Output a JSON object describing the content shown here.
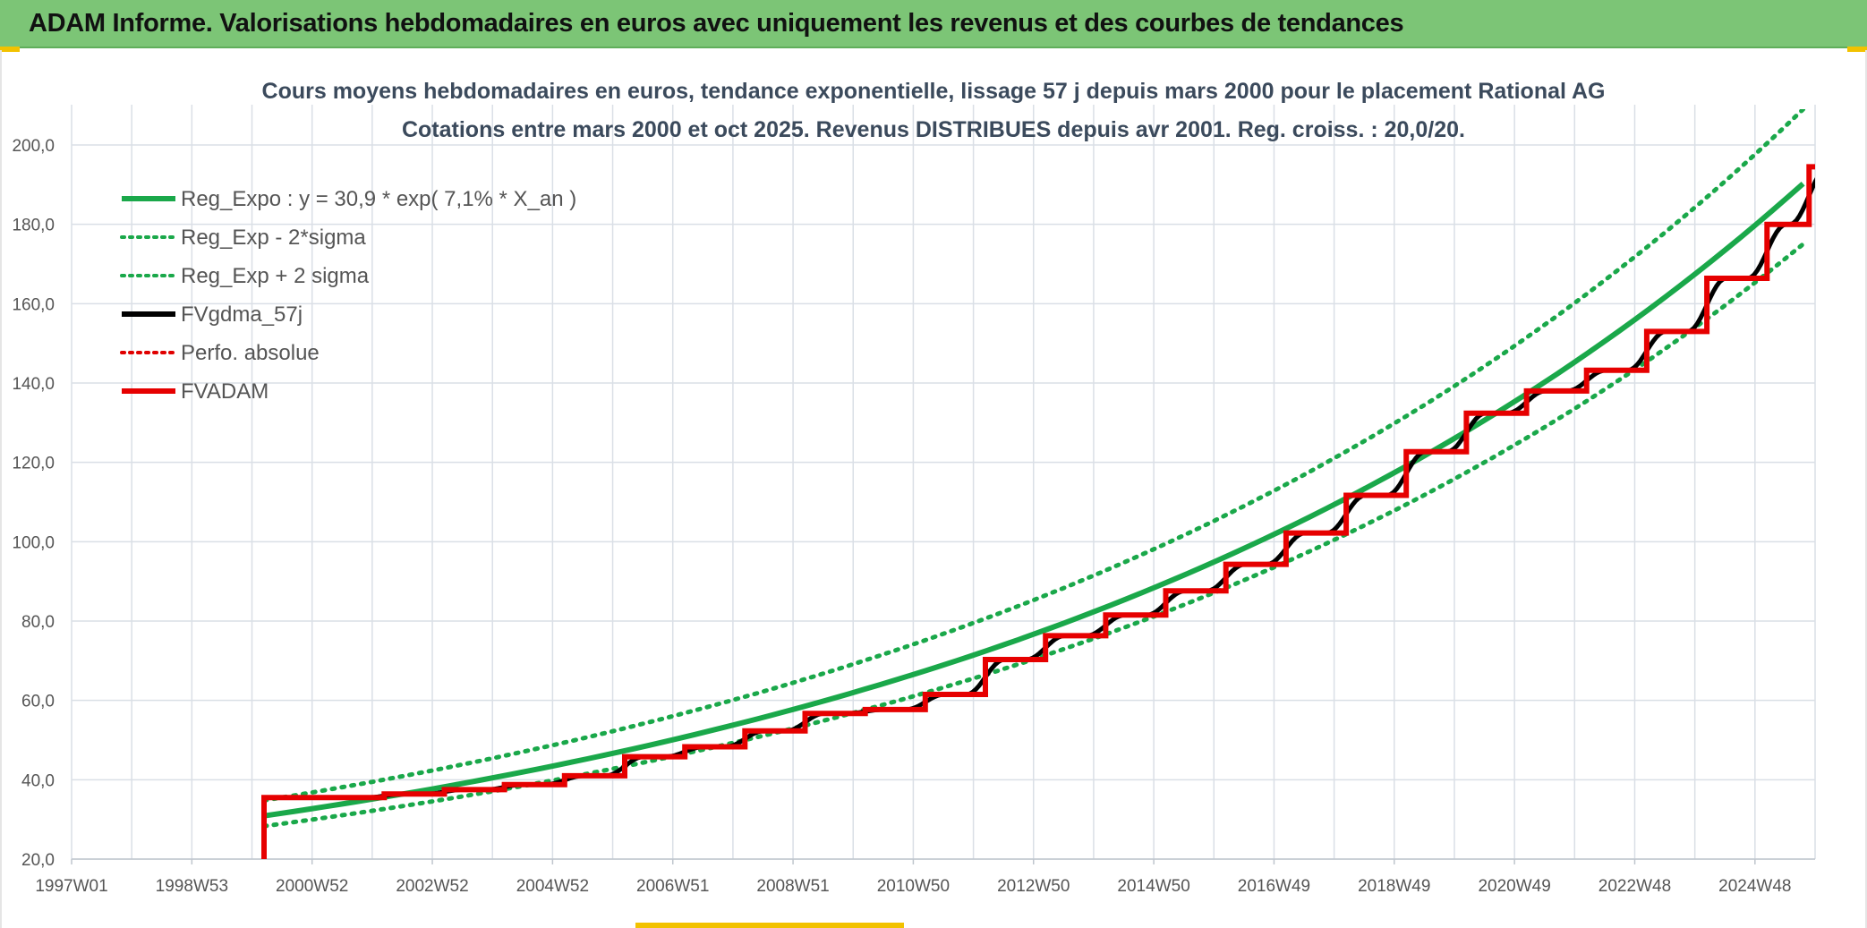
{
  "banner": {
    "title": "ADAM Informe. Valorisations hebdomadaires en euros avec uniquement les revenus et des courbes de tendances"
  },
  "chart_data": {
    "type": "line",
    "title": "Cours moyens hebdomadaires en euros, tendance exponentielle, lissage 57 j depuis mars 2000 pour le placement Rational AG",
    "subtitle": "Cotations entre mars 2000 et oct 2025. Revenus DISTRIBUES depuis avr 2001. Reg. croiss. : 20,0/20.",
    "x_tick_labels": [
      "1997W01",
      "1998W53",
      "2000W52",
      "2002W52",
      "2004W52",
      "2006W51",
      "2008W51",
      "2010W50",
      "2012W50",
      "2014W50",
      "2016W49",
      "2018W49",
      "2020W49",
      "2022W48",
      "2024W48"
    ],
    "x_tick_years": [
      1997.0,
      1999.0,
      2001.0,
      2003.0,
      2005.0,
      2007.0,
      2009.0,
      2011.0,
      2013.0,
      2015.0,
      2017.0,
      2019.0,
      2021.0,
      2023.0,
      2025.0
    ],
    "xlim": [
      1997.0,
      2026.0
    ],
    "ylim": [
      20,
      200
    ],
    "y_ticks": [
      "20,0",
      "40,0",
      "60,0",
      "80,0",
      "100,0",
      "120,0",
      "140,0",
      "160,0",
      "180,0",
      "200,0"
    ],
    "y_tick_values": [
      20,
      40,
      60,
      80,
      100,
      120,
      140,
      160,
      180,
      200
    ],
    "grid": true,
    "legend_position": "top-left",
    "legend": [
      {
        "label": "Reg_Expo : y = 30,9 * exp( 7,1% *  X_an )",
        "color": "#1aa84a",
        "style": "solid"
      },
      {
        "label": "Reg_Exp - 2*sigma",
        "color": "#1aa84a",
        "style": "dotted"
      },
      {
        "label": "Reg_Exp + 2 sigma",
        "color": "#1aa84a",
        "style": "dotted"
      },
      {
        "label": "FVgdma_57j",
        "color": "#000000",
        "style": "solid"
      },
      {
        "label": "Perfo. absolue",
        "color": "#e00000",
        "style": "dotted"
      },
      {
        "label": "FVADAM",
        "color": "#e60000",
        "style": "solid"
      }
    ],
    "regression": {
      "a": 30.9,
      "rate": 0.071,
      "x0": 2000.2,
      "x_end": 2025.8
    },
    "band_lower": {
      "x": [
        2000.2,
        2025.8
      ],
      "y": [
        28.3,
        175.0
      ]
    },
    "band_upper": {
      "x": [
        2000.2,
        2025.8
      ],
      "y": [
        34.8,
        209.0
      ]
    },
    "fvadam_start": {
      "year": 2000.2,
      "value": 20.0
    },
    "fvadam_steps": [
      {
        "year": 2000.2,
        "value": 35.5
      },
      {
        "year": 2002.2,
        "value": 36.4
      },
      {
        "year": 2003.2,
        "value": 37.5
      },
      {
        "year": 2004.2,
        "value": 38.8
      },
      {
        "year": 2005.2,
        "value": 41.0
      },
      {
        "year": 2006.2,
        "value": 45.8
      },
      {
        "year": 2007.2,
        "value": 48.3
      },
      {
        "year": 2008.2,
        "value": 52.3
      },
      {
        "year": 2009.2,
        "value": 56.7
      },
      {
        "year": 2010.2,
        "value": 57.7
      },
      {
        "year": 2011.2,
        "value": 61.5
      },
      {
        "year": 2012.2,
        "value": 70.3
      },
      {
        "year": 2013.2,
        "value": 76.3
      },
      {
        "year": 2014.2,
        "value": 81.5
      },
      {
        "year": 2015.2,
        "value": 87.6
      },
      {
        "year": 2016.2,
        "value": 94.3
      },
      {
        "year": 2017.2,
        "value": 102.2
      },
      {
        "year": 2018.2,
        "value": 111.7
      },
      {
        "year": 2019.2,
        "value": 122.7
      },
      {
        "year": 2020.2,
        "value": 132.4
      },
      {
        "year": 2021.2,
        "value": 138.0
      },
      {
        "year": 2022.2,
        "value": 143.2
      },
      {
        "year": 2023.2,
        "value": 153.0
      },
      {
        "year": 2024.2,
        "value": 166.4
      },
      {
        "year": 2025.2,
        "value": 180.0
      },
      {
        "year": 2025.9,
        "value": 194.5
      }
    ],
    "fvadam_end_year": 2026.0
  }
}
